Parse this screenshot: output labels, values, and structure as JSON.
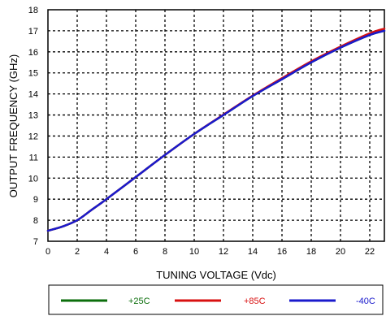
{
  "chart_data": {
    "type": "line",
    "title": "",
    "xlabel": "TUNING VOLTAGE (Vdc)",
    "ylabel": "OUTPUT FREQUENCY (GHz)",
    "xlim": [
      0,
      23
    ],
    "ylim": [
      7,
      18
    ],
    "xticks": [
      "0",
      "2",
      "4",
      "6",
      "8",
      "10",
      "12",
      "14",
      "16",
      "18",
      "20",
      "22"
    ],
    "yticks": [
      "7",
      "8",
      "9",
      "10",
      "11",
      "12",
      "13",
      "14",
      "15",
      "16",
      "17",
      "18"
    ],
    "grid": true,
    "grid_style": "dashed",
    "legend_position": "bottom",
    "series": [
      {
        "name": "+25C",
        "color": "#0b6e0b",
        "x": [
          0,
          1,
          2,
          3,
          4,
          6,
          8,
          10,
          12,
          14,
          16,
          18,
          20,
          22,
          23
        ],
        "y": [
          7.5,
          7.7,
          8.0,
          8.5,
          9.0,
          10.05,
          11.1,
          12.1,
          13.0,
          13.9,
          14.7,
          15.5,
          16.2,
          16.8,
          17.0
        ]
      },
      {
        "name": "+85C",
        "color": "#d81010",
        "x": [
          0,
          1,
          2,
          3,
          4,
          6,
          8,
          10,
          12,
          14,
          16,
          18,
          20,
          22,
          23
        ],
        "y": [
          7.5,
          7.7,
          8.0,
          8.5,
          9.0,
          10.05,
          11.1,
          12.1,
          13.02,
          13.92,
          14.75,
          15.55,
          16.25,
          16.88,
          17.1
        ]
      },
      {
        "name": "-40C",
        "color": "#1a1acc",
        "x": [
          0,
          1,
          2,
          3,
          4,
          6,
          8,
          10,
          12,
          14,
          16,
          18,
          20,
          22,
          23
        ],
        "y": [
          7.5,
          7.7,
          8.0,
          8.5,
          9.0,
          10.05,
          11.1,
          12.1,
          13.0,
          13.9,
          14.7,
          15.5,
          16.2,
          16.8,
          17.0
        ]
      }
    ]
  }
}
